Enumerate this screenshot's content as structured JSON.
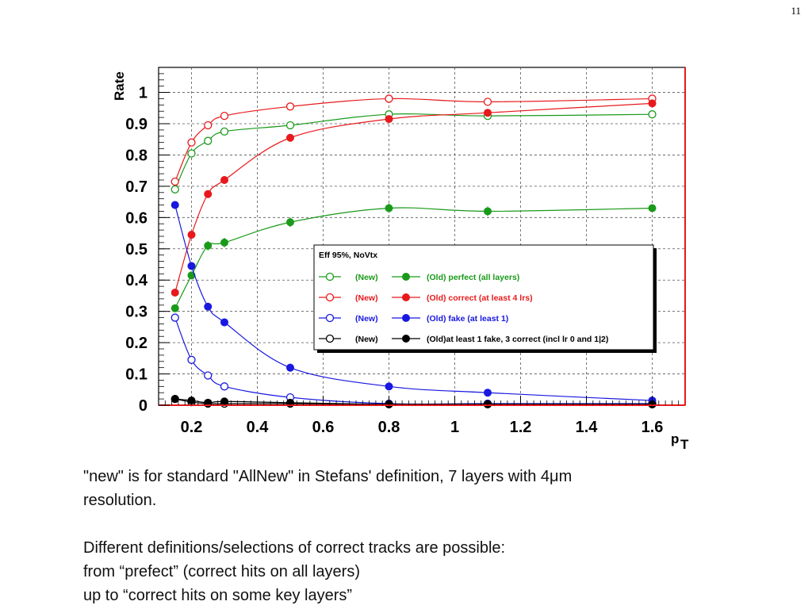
{
  "slide": {
    "number": "11"
  },
  "caption": {
    "line1": "\"new\" is for standard \"AllNew\" in Stefans' definition, 7 layers with 4μm",
    "line2": "resolution.",
    "line3": "Different definitions/selections of correct tracks are possible:",
    "line4": "from “prefect” (correct hits on all layers)",
    "line5": "up to “correct hits on some key layers”"
  },
  "chart_data": {
    "type": "line",
    "title": "",
    "xlabel": "p",
    "xlabel_sub": "T",
    "ylabel": "Rate",
    "xlim": [
      0.1,
      1.7
    ],
    "ylim": [
      0,
      1.08
    ],
    "xticks": [
      0.2,
      0.4,
      0.6,
      0.8,
      1.0,
      1.2,
      1.4,
      1.6
    ],
    "xtick_labels": [
      "0.2",
      "0.4",
      "0.6",
      "0.8",
      "1",
      "1.2",
      "1.4",
      "1.6"
    ],
    "yticks": [
      0,
      0.1,
      0.2,
      0.3,
      0.4,
      0.5,
      0.6,
      0.7,
      0.8,
      0.9,
      1.0
    ],
    "ytick_labels": [
      "0",
      "0.1",
      "0.2",
      "0.3",
      "0.4",
      "0.5",
      "0.6",
      "0.7",
      "0.8",
      "0.9",
      "1"
    ],
    "grid": true,
    "legend_placement": "center-right",
    "legend_header": "Eff 95%, NoVtx",
    "legend_rows": [
      {
        "new_label": "(New)",
        "old_label": "(Old) perfect (all layers)",
        "color": "#1a9a1a"
      },
      {
        "new_label": "(New)",
        "old_label": "(Old) correct (at least 4 lrs)",
        "color": "#e8191c"
      },
      {
        "new_label": "(New)",
        "old_label": "(Old) fake (at least 1)",
        "color": "#1818e0"
      },
      {
        "new_label": "(New)",
        "old_label": "(Old)at least 1 fake, 3 correct (incl lr 0 and 1|2)",
        "color": "#000000"
      }
    ],
    "x": [
      0.15,
      0.2,
      0.25,
      0.3,
      0.5,
      0.8,
      1.1,
      1.6
    ],
    "series": [
      {
        "name": "(New)",
        "color": "#1a9a1a",
        "marker": "open",
        "values": [
          0.69,
          0.805,
          0.845,
          0.875,
          0.895,
          0.93,
          0.925,
          0.93
        ]
      },
      {
        "name": "(New)",
        "color": "#e8191c",
        "marker": "open",
        "values": [
          0.715,
          0.84,
          0.895,
          0.925,
          0.955,
          0.98,
          0.97,
          0.98
        ]
      },
      {
        "name": "(New)",
        "color": "#1818e0",
        "marker": "open",
        "values": [
          0.28,
          0.145,
          0.095,
          0.06,
          0.025,
          0.005,
          0.005,
          0.005
        ]
      },
      {
        "name": "(New)",
        "color": "#000000",
        "marker": "open",
        "values": [
          0.02,
          0.01,
          0.005,
          0.005,
          0.005,
          0.003,
          0.003,
          0.003
        ]
      },
      {
        "name": "(Old) perfect (all layers)",
        "color": "#1a9a1a",
        "marker": "filled",
        "values": [
          0.31,
          0.415,
          0.51,
          0.52,
          0.585,
          0.63,
          0.62,
          0.63
        ],
        "errors": [
          0.012,
          0.012,
          0.015,
          0.015,
          0.015,
          0.015,
          0.015,
          0.012
        ]
      },
      {
        "name": "(Old) correct (at least 4 lrs)",
        "color": "#e8191c",
        "marker": "filled",
        "values": [
          0.36,
          0.545,
          0.675,
          0.72,
          0.855,
          0.915,
          0.935,
          0.965
        ],
        "errors": [
          0.012,
          0.012,
          0.012,
          0.012,
          0.01,
          0.008,
          0.008,
          0.008
        ]
      },
      {
        "name": "(Old) fake (at least 1)",
        "color": "#1818e0",
        "marker": "filled",
        "values": [
          0.64,
          0.445,
          0.315,
          0.265,
          0.12,
          0.06,
          0.04,
          0.015
        ],
        "errors": [
          0.012,
          0.012,
          0.012,
          0.012,
          0.008,
          0.006,
          0.005,
          0.004
        ]
      },
      {
        "name": "(Old)at least 1 fake, 3 correct (incl lr 0 and 1|2)",
        "color": "#000000",
        "marker": "filled",
        "values": [
          0.02,
          0.015,
          0.008,
          0.012,
          0.008,
          0.003,
          0.003,
          0.003
        ]
      }
    ]
  }
}
